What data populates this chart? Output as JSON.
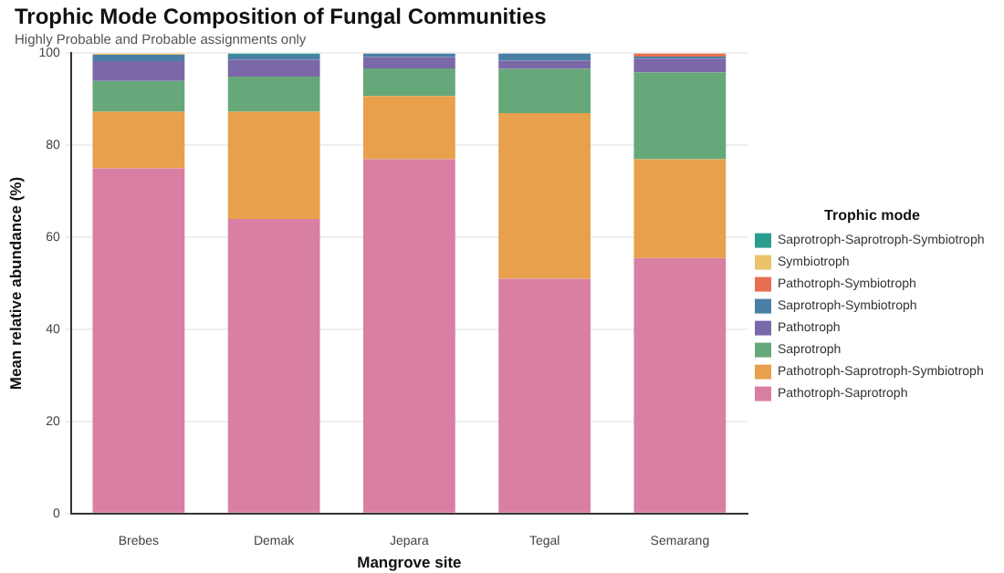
{
  "chart_data": {
    "type": "bar",
    "title": "Trophic Mode Composition of Fungal Communities",
    "subtitle": "Highly Probable and Probable assignments only",
    "xlabel": "Mangrove site",
    "ylabel": "Mean relative abundance (%)",
    "legend_title": "Trophic mode",
    "categories": [
      "Brebes",
      "Demak",
      "Jepara",
      "Tegal",
      "Semarang"
    ],
    "stacked": true,
    "ylim": [
      0,
      100
    ],
    "yticks": [
      0,
      20,
      40,
      60,
      80,
      100
    ],
    "grid": "y",
    "legend": "right",
    "series": [
      {
        "name": "Pathotroph-Saprotroph",
        "color": "#d97fa3",
        "values": [
          75,
          64,
          77,
          51,
          55.5
        ]
      },
      {
        "name": "Pathotroph-Saprotroph-Symbiotroph",
        "color": "#e8a04c",
        "values": [
          12.3,
          23.3,
          13.7,
          36,
          21.5
        ]
      },
      {
        "name": "Saprotroph",
        "color": "#66a87a",
        "values": [
          6.7,
          7.6,
          6,
          9.6,
          18.8
        ]
      },
      {
        "name": "Pathotroph",
        "color": "#7b68a8",
        "values": [
          4.3,
          3.7,
          2.5,
          1.8,
          3
        ]
      },
      {
        "name": "Saprotroph-Symbiotroph",
        "color": "#4a7fa5",
        "values": [
          1.4,
          1.1,
          0.8,
          1.6,
          0.5
        ]
      },
      {
        "name": "Pathotroph-Symbiotroph",
        "color": "#e76f51",
        "values": [
          null,
          0,
          0,
          0,
          0.7
        ]
      },
      {
        "name": "Symbiotroph",
        "color": "#e9c46a",
        "values": [
          0.3,
          0,
          0,
          0,
          0
        ]
      },
      {
        "name": "Saprotroph-Saprotroph-Symbiotroph",
        "color": "#2a9d8f",
        "values": [
          null,
          0.3,
          null,
          null,
          0
        ]
      }
    ]
  }
}
